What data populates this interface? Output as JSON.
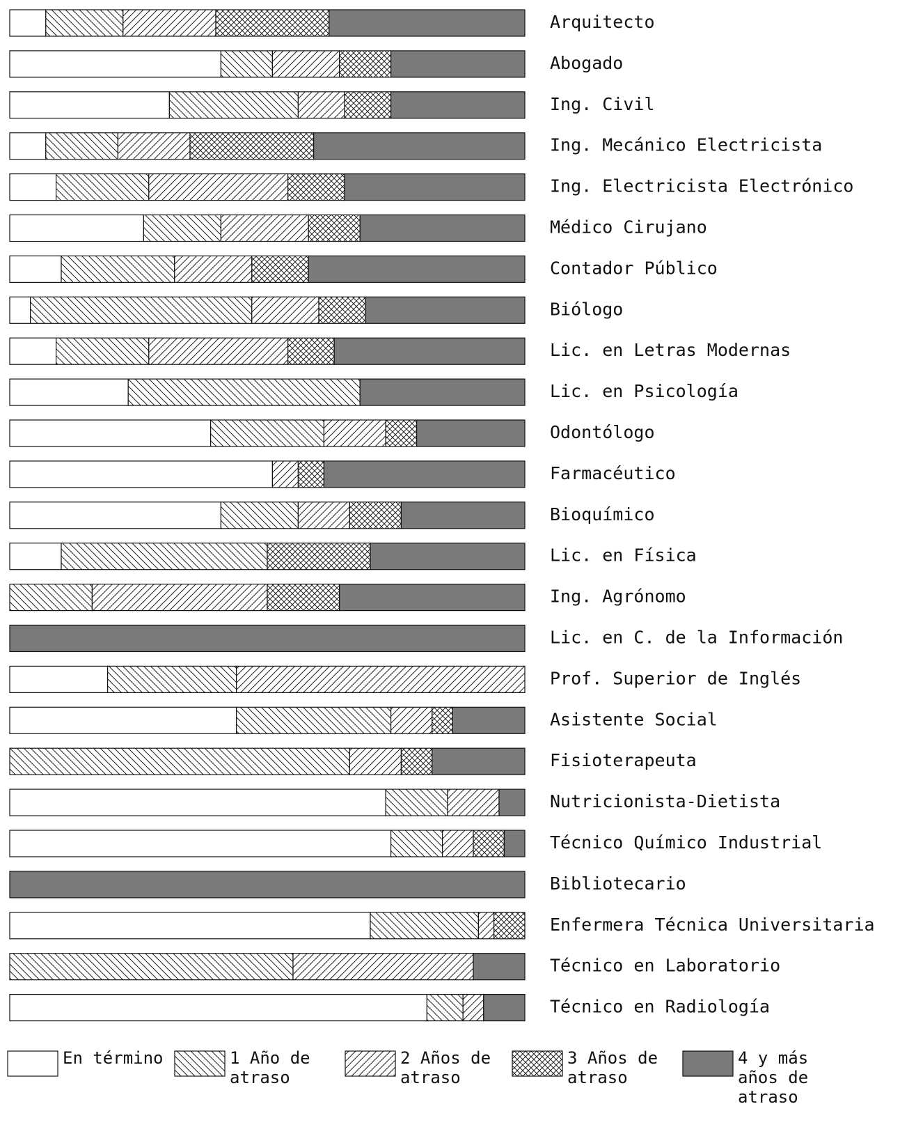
{
  "chart_data": {
    "type": "stacked-bar-horizontal",
    "categories": [
      "Arquitecto",
      "Abogado",
      "Ing. Civil",
      "Ing. Mecánico Electricista",
      "Ing. Electricista Electrónico",
      "Médico Cirujano",
      "Contador Público",
      "Biólogo",
      "Lic. en Letras Modernas",
      "Lic. en Psicología",
      "Odontólogo",
      "Farmacéutico",
      "Bioquímico",
      "Lic. en Física",
      "Ing. Agrónomo",
      "Lic. en C. de la Información",
      "Prof. Superior de Inglés",
      "Asistente Social",
      "Fisioterapeuta",
      "Nutricionista-Dietista",
      "Técnico Químico Industrial",
      "Bibliotecario",
      "Enfermera Técnica Universitaria",
      "Técnico en Laboratorio",
      "Técnico en Radiología"
    ],
    "series": [
      {
        "name": "En término",
        "color": "#ffffff",
        "hatch": "none",
        "values": [
          7,
          41,
          31,
          7,
          9,
          26,
          10,
          4,
          9,
          23,
          39,
          51,
          41,
          10,
          0,
          0,
          19,
          44,
          0,
          73,
          74,
          0,
          70,
          0,
          81
        ]
      },
      {
        "name": "1 Año de atraso",
        "color": "#ffffff",
        "hatch": "back",
        "values": [
          15,
          10,
          25,
          14,
          18,
          15,
          22,
          43,
          18,
          45,
          22,
          0,
          15,
          40,
          16,
          0,
          25,
          30,
          66,
          12,
          10,
          0,
          21,
          55,
          7
        ]
      },
      {
        "name": "2 Años de atraso",
        "color": "#ffffff",
        "hatch": "forward",
        "values": [
          18,
          13,
          9,
          14,
          27,
          17,
          15,
          13,
          27,
          0,
          12,
          5,
          10,
          0,
          34,
          0,
          56,
          8,
          10,
          10,
          6,
          0,
          3,
          35,
          4
        ]
      },
      {
        "name": "3 Años de atraso",
        "color": "#ffffff",
        "hatch": "cross",
        "values": [
          22,
          10,
          9,
          24,
          11,
          10,
          11,
          9,
          9,
          0,
          6,
          5,
          10,
          20,
          14,
          0,
          0,
          4,
          6,
          0,
          6,
          0,
          6,
          0,
          0
        ]
      },
      {
        "name": "4 y más años de atraso",
        "color": "#7a7a7a",
        "hatch": "none",
        "values": [
          38,
          26,
          26,
          41,
          35,
          32,
          42,
          31,
          37,
          32,
          21,
          39,
          24,
          30,
          36,
          100,
          0,
          14,
          18,
          5,
          4,
          100,
          0,
          10,
          8
        ]
      }
    ],
    "xlim": [
      0,
      100
    ]
  }
}
